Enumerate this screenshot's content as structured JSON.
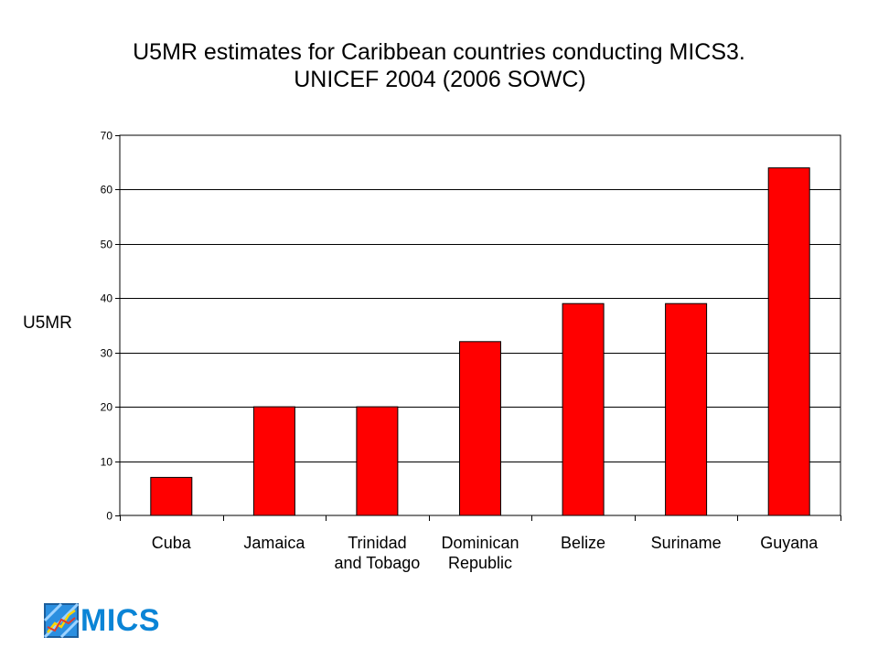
{
  "chart_data": {
    "type": "bar",
    "title_lines": [
      "U5MR estimates for Caribbean countries conducting MICS3.",
      "UNICEF 2004 (2006 SOWC)"
    ],
    "ylabel": "U5MR",
    "xlabel": "",
    "categories": [
      [
        "Cuba"
      ],
      [
        "Jamaica"
      ],
      [
        "Trinidad",
        "and Tobago"
      ],
      [
        "Dominican",
        "Republic"
      ],
      [
        "Belize"
      ],
      [
        "Suriname"
      ],
      [
        "Guyana"
      ]
    ],
    "values": [
      7,
      20,
      20,
      32,
      39,
      39,
      64
    ],
    "ylim": [
      0,
      70
    ],
    "yticks": [
      0,
      10,
      20,
      30,
      40,
      50,
      60,
      70
    ],
    "bar_color": "#ff0000",
    "grid": true,
    "legend": "none"
  },
  "logo": {
    "text": "MICS",
    "text_color": "#0a84d6",
    "icon": "mics-chart-logo-icon"
  }
}
